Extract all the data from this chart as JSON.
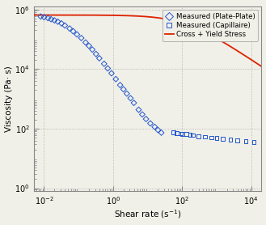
{
  "xlabel": "Shear rate (s$^{-1}$)",
  "ylabel": "Viscosity (Pa· s)",
  "xlim_log": [
    -2.3,
    4.3
  ],
  "ylim_log": [
    -0.1,
    6.1
  ],
  "xticks_log": [
    -2,
    0,
    2,
    4
  ],
  "yticks_log": [
    0,
    2,
    4,
    6
  ],
  "grid_color": "#aaaaaa",
  "grid_linestyle": ":",
  "legend_labels": [
    "Measured (Plate-Plate)",
    "Measured (Capillaire)",
    "Cross + Yield Stress"
  ],
  "line_color": "#dd2200",
  "marker_color": "#2255cc",
  "background_color": "#f0f0e8",
  "axes_color": "#888888",
  "plate_plate_x": [
    0.008,
    0.01,
    0.013,
    0.016,
    0.02,
    0.025,
    0.032,
    0.04,
    0.055,
    0.07,
    0.09,
    0.12,
    0.16,
    0.2,
    0.25,
    0.32,
    0.4,
    0.55,
    0.7,
    0.9,
    1.2,
    1.6,
    2.0,
    2.5,
    3.2,
    4.0,
    5.5,
    7.0,
    9.0,
    12.0,
    16.0,
    20.0,
    25.0
  ],
  "plate_plate_y": [
    580000.0,
    550000.0,
    510000.0,
    470000.0,
    430000.0,
    390000.0,
    340000.0,
    290000.0,
    230000.0,
    185000.0,
    145000.0,
    110000.0,
    78000.0,
    60000.0,
    45000.0,
    32000.0,
    23000.0,
    15000.0,
    10500.0,
    7200,
    4600,
    2900,
    2100,
    1500,
    1050,
    730,
    430,
    300,
    210,
    150,
    115,
    90,
    73
  ],
  "capillaire_x": [
    55,
    70,
    90,
    100,
    130,
    170,
    200,
    300,
    450,
    700,
    1000,
    1500,
    2500,
    4000,
    7000,
    12000
  ],
  "capillaire_y": [
    75,
    72,
    68,
    67,
    65,
    62,
    60,
    56,
    53,
    50,
    48,
    46,
    43,
    41,
    38,
    36
  ],
  "cross_eta0": 650000.0,
  "cross_etainf": 25,
  "cross_lambda": 0.008,
  "cross_n": 0.78,
  "cross_tau_y": 0.0
}
